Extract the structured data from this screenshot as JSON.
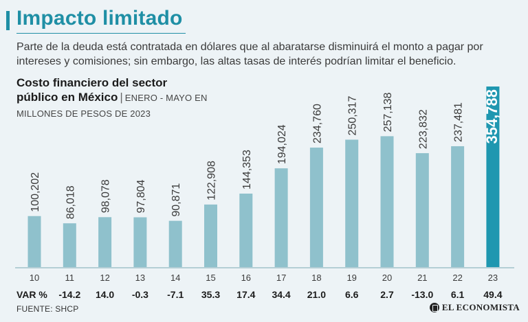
{
  "header": {
    "title": "Impacto limitado",
    "subtitle": "Parte de la deuda está contratada en dólares que al abaratarse disminuirá el monto a pagar por intereses y comisiones; sin embargo, las altas tasas de interés podrían limitar el beneficio."
  },
  "chart_header": {
    "title_line1": "Costo financiero del sector",
    "title_line2": "público en México",
    "period": "ENERO - MAYO EN",
    "unit": "MILLONES DE PESOS DE 2023"
  },
  "var_label": "VAR %",
  "source": "FUENTE: SHCP",
  "brand": "EL ECONOMISTA",
  "colors": {
    "accent": "#1f8fa5",
    "bar": "#8fc1cc",
    "bar_highlight": "#1f97b0",
    "background": "#edf3f6"
  },
  "chart_data": {
    "type": "bar",
    "title": "Costo financiero del sector público en México | ENERO - MAYO EN MILLONES DE PESOS DE 2023",
    "categories": [
      "10",
      "11",
      "12",
      "13",
      "14",
      "15",
      "16",
      "17",
      "18",
      "19",
      "20",
      "21",
      "22",
      "23"
    ],
    "values": [
      100202,
      86018,
      98078,
      97804,
      90871,
      122908,
      144353,
      194024,
      234760,
      250317,
      257138,
      223832,
      237481,
      354788
    ],
    "value_labels": [
      "100,202",
      "86,018",
      "98,078",
      "97,804",
      "90,871",
      "122,908",
      "144,353",
      "194,024",
      "234,760",
      "250,317",
      "257,138",
      "223,832",
      "237,481",
      "354,788"
    ],
    "var_pct": [
      "",
      "-14.2",
      "14.0",
      "-0.3",
      "-7.1",
      "35.3",
      "17.4",
      "34.4",
      "21.0",
      "6.6",
      "2.7",
      "-13.0",
      "6.1",
      "49.4"
    ],
    "highlight_index": 13,
    "ylim": [
      0,
      354788
    ],
    "grid": false,
    "legend": "none"
  }
}
